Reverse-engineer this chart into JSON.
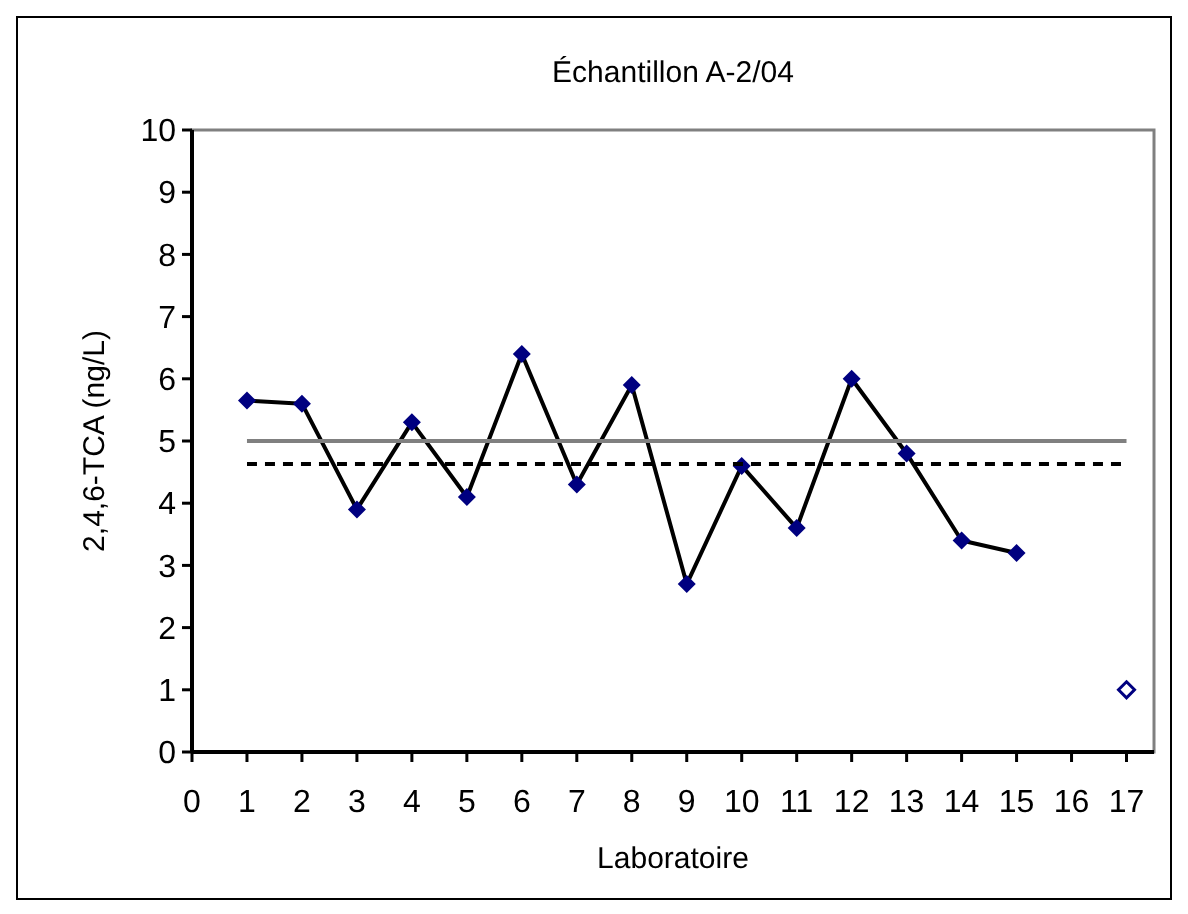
{
  "chart_data": {
    "type": "line",
    "title": "Échantillon A-2/04",
    "xlabel": "Laboratoire",
    "ylabel": "2,4,6-TCA (ng/L)",
    "xlim": [
      0,
      17.5
    ],
    "xticks": [
      0,
      1,
      2,
      3,
      4,
      5,
      6,
      7,
      8,
      9,
      10,
      11,
      12,
      13,
      14,
      15,
      16,
      17
    ],
    "ylim": [
      0,
      10
    ],
    "yticks": [
      0,
      1,
      2,
      3,
      4,
      5,
      6,
      7,
      8,
      9,
      10
    ],
    "grid": false,
    "series": [
      {
        "color": "#000000",
        "marker": "diamond",
        "x": [
          1,
          2,
          3,
          4,
          5,
          6,
          7,
          8,
          9,
          10,
          11,
          12,
          13,
          14,
          15
        ],
        "values": [
          5.65,
          5.6,
          3.9,
          5.3,
          4.1,
          6.4,
          4.3,
          5.9,
          2.7,
          4.6,
          3.6,
          6.0,
          4.8,
          3.4,
          3.2
        ],
        "colors": [
          "#000080",
          "#000080",
          "#000080",
          "#000080",
          "#000080",
          "#000080",
          "#000080",
          "#000080",
          "#000080",
          "#000080",
          "#000080",
          "#000080",
          "#000080",
          "#000080",
          "#000080"
        ]
      },
      {
        "type": "scatter",
        "color": "#000080",
        "marker": "diamond",
        "x": [
          17
        ],
        "values": [
          1
        ]
      },
      {
        "type": "line",
        "color": "#808080",
        "marker": "none",
        "line_style": "solid",
        "x": [
          1,
          17
        ],
        "values": [
          5,
          5
        ]
      },
      {
        "type": "line",
        "color": "#000000",
        "marker": "none",
        "line_style": "dashed",
        "x": [
          1,
          17
        ],
        "values": [
          4.63,
          4.63
        ]
      }
    ]
  }
}
